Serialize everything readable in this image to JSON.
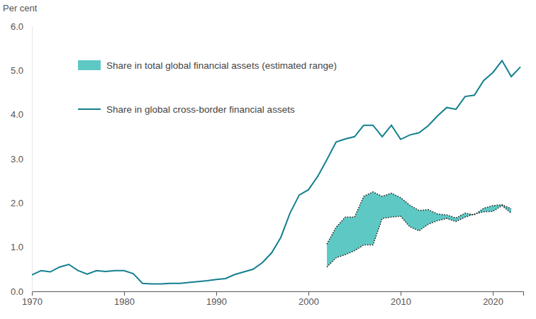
{
  "chart_data": {
    "type": "line",
    "y_label": "Per cent",
    "legend": "upper left",
    "grid": false,
    "x": [
      1970,
      1971,
      1972,
      1973,
      1974,
      1975,
      1976,
      1977,
      1978,
      1979,
      1980,
      1981,
      1982,
      1983,
      1984,
      1985,
      1986,
      1987,
      1988,
      1989,
      1990,
      1991,
      1992,
      1993,
      1994,
      1995,
      1996,
      1997,
      1998,
      1999,
      2000,
      2001,
      2002,
      2003,
      2004,
      2005,
      2006,
      2007,
      2008,
      2009,
      2010,
      2011,
      2012,
      2013,
      2014,
      2015,
      2016,
      2017,
      2018,
      2019,
      2020,
      2021,
      2022,
      2023
    ],
    "xlim": [
      1970,
      2023.3
    ],
    "xticks": [
      1970,
      1980,
      1990,
      2000,
      2010,
      2020
    ],
    "ylim": [
      0,
      6
    ],
    "yticks": [
      {
        "value": 0,
        "label": "0.0"
      },
      {
        "value": 1,
        "label": "1.0"
      },
      {
        "value": 2,
        "label": "2.0"
      },
      {
        "value": 3,
        "label": "3.0"
      },
      {
        "value": 4,
        "label": "4.0"
      },
      {
        "value": 5,
        "label": "5.0"
      },
      {
        "value": 6,
        "label": "6.0"
      }
    ],
    "series": [
      {
        "name": "Share in total global financial assets (estimated range)",
        "type": "area",
        "color": "#5ec8c4",
        "line_style": "dotted",
        "values": [
          null,
          null,
          null,
          null,
          null,
          null,
          null,
          null,
          null,
          null,
          null,
          null,
          null,
          null,
          null,
          null,
          null,
          null,
          null,
          null,
          null,
          null,
          null,
          null,
          null,
          null,
          null,
          null,
          null,
          null,
          null,
          null,
          1.07,
          1.45,
          1.68,
          1.68,
          2.15,
          2.25,
          2.15,
          2.22,
          2.12,
          1.95,
          1.83,
          1.85,
          1.75,
          1.73,
          1.66,
          1.77,
          1.73,
          1.88,
          1.94,
          1.96,
          1.87,
          null
        ],
        "lower": [
          null,
          null,
          null,
          null,
          null,
          null,
          null,
          null,
          null,
          null,
          null,
          null,
          null,
          null,
          null,
          null,
          null,
          null,
          null,
          null,
          null,
          null,
          null,
          null,
          null,
          null,
          null,
          null,
          null,
          null,
          null,
          null,
          0.55,
          0.76,
          0.83,
          0.92,
          1.05,
          1.05,
          1.65,
          1.68,
          1.7,
          1.46,
          1.37,
          1.52,
          1.6,
          1.65,
          1.58,
          1.68,
          1.75,
          1.8,
          1.81,
          1.94,
          1.77,
          null
        ]
      },
      {
        "name": "Share in global cross-border financial assets",
        "type": "line",
        "color": "#13808f",
        "line_style": "solid",
        "values": [
          0.37,
          0.47,
          0.44,
          0.55,
          0.61,
          0.47,
          0.39,
          0.47,
          0.45,
          0.47,
          0.47,
          0.4,
          0.18,
          0.17,
          0.17,
          0.18,
          0.18,
          0.2,
          0.22,
          0.24,
          0.27,
          0.29,
          0.38,
          0.44,
          0.5,
          0.65,
          0.87,
          1.22,
          1.77,
          2.18,
          2.3,
          2.6,
          2.98,
          3.38,
          3.45,
          3.5,
          3.76,
          3.76,
          3.5,
          3.76,
          3.44,
          3.54,
          3.59,
          3.75,
          3.97,
          4.16,
          4.12,
          4.41,
          4.44,
          4.77,
          4.95,
          5.22,
          4.86,
          5.08
        ]
      }
    ]
  }
}
